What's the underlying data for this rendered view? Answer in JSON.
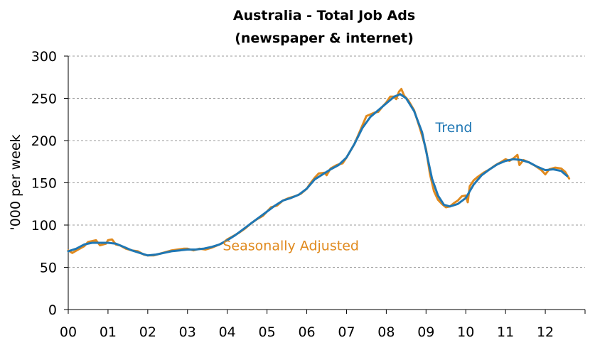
{
  "chart_data": {
    "type": "line",
    "title": "Australia - Total Job Ads",
    "subtitle": "(newspaper & internet)",
    "xlabel": "",
    "ylabel": "'000 per week",
    "ylim": [
      0,
      300
    ],
    "yticks": [
      0,
      50,
      100,
      150,
      200,
      250,
      300
    ],
    "xlim": [
      2000,
      2013
    ],
    "xtick_labels": [
      "00",
      "01",
      "02",
      "03",
      "04",
      "05",
      "06",
      "07",
      "08",
      "09",
      "10",
      "11",
      "12"
    ],
    "grid": "horizontal dashed",
    "legend": "none",
    "series": [
      {
        "name": "Seasonally Adjusted",
        "color": "#e08a1e",
        "points": [
          [
            2000.0,
            70
          ],
          [
            2000.1,
            67
          ],
          [
            2000.25,
            71
          ],
          [
            2000.4,
            75
          ],
          [
            2000.5,
            80
          ],
          [
            2000.6,
            81
          ],
          [
            2000.7,
            82
          ],
          [
            2000.8,
            76
          ],
          [
            2000.95,
            78
          ],
          [
            2001.0,
            82
          ],
          [
            2001.1,
            83
          ],
          [
            2001.2,
            77
          ],
          [
            2001.3,
            76
          ],
          [
            2001.45,
            72
          ],
          [
            2001.6,
            70
          ],
          [
            2001.75,
            69
          ],
          [
            2001.9,
            65
          ],
          [
            2002.0,
            64
          ],
          [
            2002.15,
            64
          ],
          [
            2002.3,
            66
          ],
          [
            2002.45,
            68
          ],
          [
            2002.6,
            70
          ],
          [
            2002.75,
            71
          ],
          [
            2002.9,
            72
          ],
          [
            2003.0,
            72
          ],
          [
            2003.15,
            70
          ],
          [
            2003.3,
            72
          ],
          [
            2003.45,
            71
          ],
          [
            2003.6,
            73
          ],
          [
            2003.75,
            76
          ],
          [
            2003.9,
            79
          ],
          [
            2004.0,
            83
          ],
          [
            2004.15,
            87
          ],
          [
            2004.3,
            91
          ],
          [
            2004.45,
            96
          ],
          [
            2004.6,
            102
          ],
          [
            2004.75,
            107
          ],
          [
            2004.9,
            111
          ],
          [
            2005.0,
            116
          ],
          [
            2005.1,
            121
          ],
          [
            2005.25,
            123
          ],
          [
            2005.4,
            129
          ],
          [
            2005.55,
            132
          ],
          [
            2005.7,
            134
          ],
          [
            2005.85,
            137
          ],
          [
            2006.0,
            143
          ],
          [
            2006.1,
            150
          ],
          [
            2006.2,
            156
          ],
          [
            2006.3,
            161
          ],
          [
            2006.45,
            162
          ],
          [
            2006.5,
            159
          ],
          [
            2006.6,
            167
          ],
          [
            2006.75,
            171
          ],
          [
            2006.9,
            173
          ],
          [
            2007.0,
            180
          ],
          [
            2007.1,
            188
          ],
          [
            2007.2,
            196
          ],
          [
            2007.3,
            207
          ],
          [
            2007.4,
            218
          ],
          [
            2007.5,
            229
          ],
          [
            2007.6,
            231
          ],
          [
            2007.7,
            233
          ],
          [
            2007.8,
            234
          ],
          [
            2007.9,
            240
          ],
          [
            2008.0,
            245
          ],
          [
            2008.1,
            252
          ],
          [
            2008.2,
            252
          ],
          [
            2008.25,
            249
          ],
          [
            2008.32,
            258
          ],
          [
            2008.38,
            261
          ],
          [
            2008.45,
            253
          ],
          [
            2008.55,
            248
          ],
          [
            2008.7,
            236
          ],
          [
            2008.85,
            214
          ],
          [
            2009.0,
            190
          ],
          [
            2009.1,
            160
          ],
          [
            2009.2,
            140
          ],
          [
            2009.3,
            130
          ],
          [
            2009.4,
            125
          ],
          [
            2009.5,
            121
          ],
          [
            2009.6,
            122
          ],
          [
            2009.7,
            126
          ],
          [
            2009.8,
            129
          ],
          [
            2009.9,
            134
          ],
          [
            2010.0,
            135
          ],
          [
            2010.05,
            127
          ],
          [
            2010.1,
            146
          ],
          [
            2010.2,
            153
          ],
          [
            2010.3,
            157
          ],
          [
            2010.45,
            162
          ],
          [
            2010.6,
            166
          ],
          [
            2010.75,
            171
          ],
          [
            2010.9,
            175
          ],
          [
            2011.0,
            178
          ],
          [
            2011.1,
            176
          ],
          [
            2011.2,
            179
          ],
          [
            2011.3,
            183
          ],
          [
            2011.35,
            171
          ],
          [
            2011.45,
            177
          ],
          [
            2011.6,
            174
          ],
          [
            2011.75,
            170
          ],
          [
            2011.9,
            165
          ],
          [
            2012.0,
            160
          ],
          [
            2012.1,
            166
          ],
          [
            2012.25,
            168
          ],
          [
            2012.4,
            167
          ],
          [
            2012.5,
            163
          ],
          [
            2012.6,
            155
          ]
        ]
      },
      {
        "name": "Trend",
        "color": "#1f77b4",
        "points": [
          [
            2000.0,
            69
          ],
          [
            2000.2,
            72
          ],
          [
            2000.4,
            77
          ],
          [
            2000.6,
            79
          ],
          [
            2000.8,
            79
          ],
          [
            2001.0,
            79
          ],
          [
            2001.2,
            78
          ],
          [
            2001.4,
            74
          ],
          [
            2001.6,
            70
          ],
          [
            2001.8,
            67
          ],
          [
            2002.0,
            64
          ],
          [
            2002.2,
            65
          ],
          [
            2002.4,
            67
          ],
          [
            2002.6,
            69
          ],
          [
            2002.8,
            70
          ],
          [
            2003.0,
            71
          ],
          [
            2003.2,
            71
          ],
          [
            2003.4,
            72
          ],
          [
            2003.6,
            74
          ],
          [
            2003.8,
            77
          ],
          [
            2004.0,
            82
          ],
          [
            2004.2,
            88
          ],
          [
            2004.4,
            95
          ],
          [
            2004.6,
            102
          ],
          [
            2004.8,
            109
          ],
          [
            2005.0,
            116
          ],
          [
            2005.2,
            123
          ],
          [
            2005.4,
            129
          ],
          [
            2005.6,
            132
          ],
          [
            2005.8,
            136
          ],
          [
            2006.0,
            143
          ],
          [
            2006.2,
            154
          ],
          [
            2006.4,
            160
          ],
          [
            2006.6,
            166
          ],
          [
            2006.8,
            171
          ],
          [
            2007.0,
            180
          ],
          [
            2007.2,
            196
          ],
          [
            2007.4,
            215
          ],
          [
            2007.6,
            228
          ],
          [
            2007.8,
            236
          ],
          [
            2008.0,
            244
          ],
          [
            2008.2,
            252
          ],
          [
            2008.35,
            255
          ],
          [
            2008.5,
            250
          ],
          [
            2008.7,
            235
          ],
          [
            2008.9,
            210
          ],
          [
            2009.0,
            188
          ],
          [
            2009.15,
            155
          ],
          [
            2009.3,
            135
          ],
          [
            2009.45,
            124
          ],
          [
            2009.6,
            122
          ],
          [
            2009.8,
            125
          ],
          [
            2010.0,
            132
          ],
          [
            2010.2,
            148
          ],
          [
            2010.4,
            159
          ],
          [
            2010.6,
            166
          ],
          [
            2010.8,
            172
          ],
          [
            2011.0,
            176
          ],
          [
            2011.2,
            178
          ],
          [
            2011.4,
            177
          ],
          [
            2011.6,
            174
          ],
          [
            2011.8,
            169
          ],
          [
            2012.0,
            165
          ],
          [
            2012.2,
            166
          ],
          [
            2012.4,
            164
          ],
          [
            2012.55,
            158
          ]
        ]
      }
    ],
    "annotations": [
      {
        "text": "Trend",
        "x": 2009.7,
        "y": 210,
        "color": "#1f77b4"
      },
      {
        "text": "Seasonally Adjusted",
        "x": 2005.6,
        "y": 70,
        "color": "#e08a1e"
      }
    ]
  }
}
